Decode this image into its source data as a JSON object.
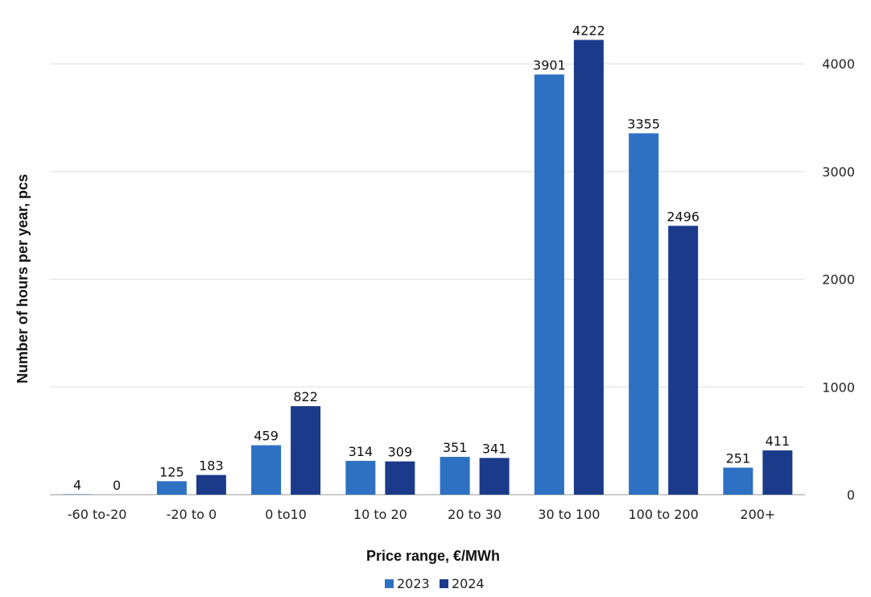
{
  "chart_data": {
    "type": "bar",
    "categories": [
      "-60 to-20",
      "-20 to 0",
      "0 to10",
      "10 to 20",
      "20 to 30",
      "30 to 100",
      "100 to 200",
      "200+"
    ],
    "series": [
      {
        "name": "2023",
        "color": "#2e71c2",
        "values": [
          4,
          125,
          459,
          314,
          351,
          3901,
          3355,
          251
        ]
      },
      {
        "name": "2024",
        "color": "#1b3b8a",
        "values": [
          0,
          183,
          822,
          309,
          341,
          4222,
          2496,
          411
        ]
      }
    ],
    "xlabel": "Price range, €/MWh",
    "ylabel": "Number of hours per year, pcs",
    "ylim": [
      0,
      4200
    ],
    "yticks": [
      0,
      1000,
      2000,
      3000,
      4000
    ],
    "y_axis_side": "right",
    "grid": true,
    "legend_position": "bottom"
  }
}
